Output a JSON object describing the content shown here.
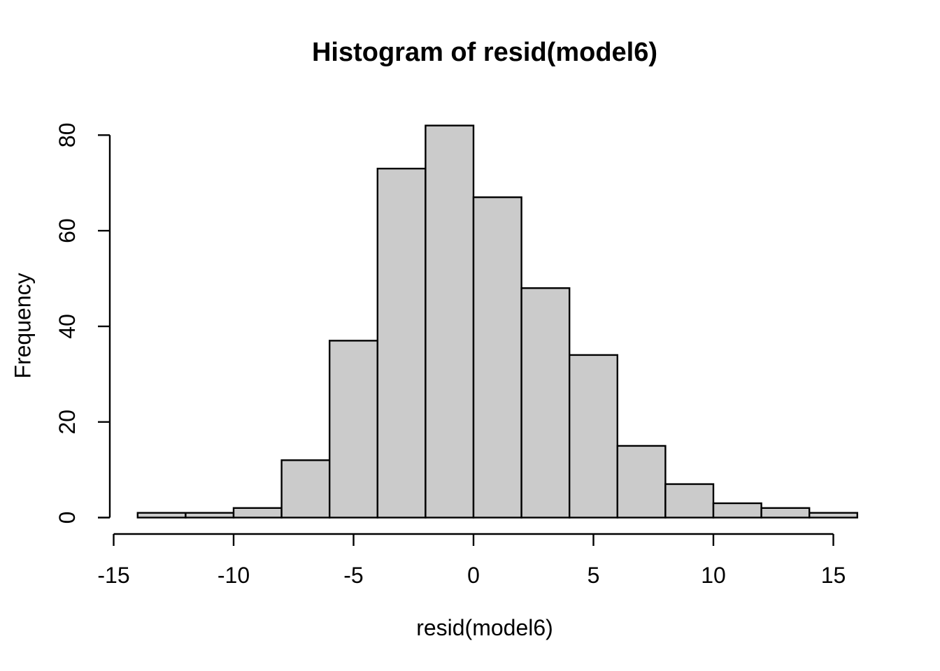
{
  "figure": {
    "title": "Histogram of resid(model6)",
    "xlabel": "resid(model6)",
    "ylabel": "Frequency"
  },
  "chart_data": {
    "type": "bar",
    "subtype": "histogram",
    "title": "Histogram of resid(model6)",
    "xlabel": "resid(model6)",
    "ylabel": "Frequency",
    "bin_width": 2,
    "bin_edges": [
      -14,
      -12,
      -10,
      -8,
      -6,
      -4,
      -2,
      0,
      2,
      4,
      6,
      8,
      10,
      12,
      14,
      16
    ],
    "counts": [
      1,
      1,
      2,
      12,
      37,
      73,
      82,
      67,
      48,
      34,
      15,
      7,
      3,
      2,
      1
    ],
    "x_ticks": [
      -15,
      -10,
      -5,
      0,
      5,
      10,
      15
    ],
    "y_ticks": [
      0,
      20,
      40,
      60,
      80
    ],
    "xlim": [
      -15,
      15
    ],
    "ylim": [
      0,
      82
    ],
    "grid": false,
    "legend_position": "none",
    "bar_fill": "#CBCBCB",
    "bar_stroke": "#000000",
    "axis_color": "#000000",
    "text_color": "#000000",
    "background": "#FFFFFF"
  }
}
